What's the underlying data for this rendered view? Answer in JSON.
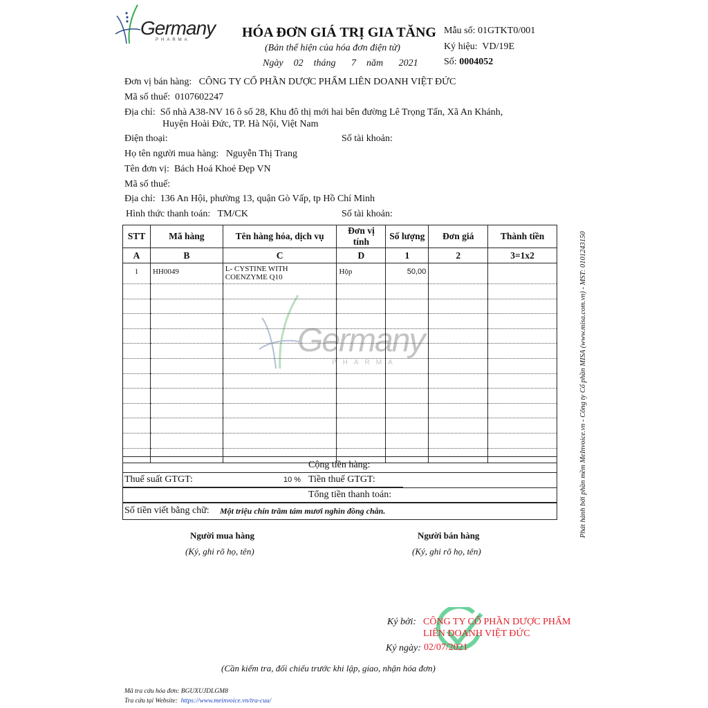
{
  "logo": {
    "brand": "Germany",
    "sub": "PHARMA"
  },
  "header": {
    "title": "HÓA ĐƠN GIÁ TRỊ GIA TĂNG",
    "subtitle": "(Bản thể hiện của hóa đơn điện tử)",
    "date_day_label": "Ngày",
    "day": "02",
    "month_label": "tháng",
    "month": "7",
    "year_label": "năm",
    "year": "2021",
    "form_label": "Mẫu số:",
    "form": "01GTKT0/001",
    "symbol_label": "Ký hiệu:",
    "symbol": "VD/19E",
    "number_label": "Số:",
    "number": "0004052"
  },
  "seller": {
    "name_label": "Đơn vị bán hàng:",
    "name": "CÔNG TY CỔ PHẦN DƯỢC PHẨM LIÊN DOANH VIỆT ĐỨC",
    "tax_label": "Mã số thuế:",
    "tax": "0107602247",
    "address_label": "Địa chỉ:",
    "address_1": "Số nhà A38-NV 16 ô số 28, Khu đô thị mới hai bên đường Lê Trọng Tấn, Xã An Khánh,",
    "address_2": "Huyện Hoài Đức, TP. Hà Nội, Việt Nam",
    "phone_label": "Điện thoại:",
    "account_label": "Số tài khoản:"
  },
  "buyer": {
    "name_label": "Họ tên người mua hàng:",
    "name": "Nguyễn Thị Trang",
    "unit_label": "Tên đơn vị:",
    "unit": "Bách Hoá Khoẻ Đẹp VN",
    "tax_label": "Mã số thuế:",
    "address_label": "Địa chỉ:",
    "address": "136 An Hội, phường 13, quận Gò Vấp, tp Hồ Chí Minh",
    "payment_label": "Hình thức thanh toán:",
    "payment": "TM/CK",
    "account_label": "Số tài khoản:"
  },
  "table": {
    "headers": [
      "STT",
      "Mã hàng",
      "Tên hàng hóa, dịch vụ",
      "Đơn vị tính",
      "Số lượng",
      "Đơn giá",
      "Thành tiền"
    ],
    "codes": [
      "A",
      "B",
      "C",
      "D",
      "1",
      "2",
      "3=1x2"
    ],
    "rows": [
      {
        "stt": "1",
        "code": "HH0049",
        "name_1": "L- CYSTINE WITH",
        "name_2": "COENZYME Q10",
        "unit": "Hộp",
        "qty": "50,00",
        "price": "",
        "amount": ""
      }
    ]
  },
  "summary": {
    "subtotal_label": "Cộng tiền hàng:",
    "vat_rate_label": "Thuế suất GTGT:",
    "vat_rate": "10 %",
    "vat_label": "Tiền thuế GTGT:",
    "total_label": "Tổng tiền thanh toán:",
    "words_label": "Số tiền viết bằng chữ:",
    "words": "Một triệu chín trăm tám mươi nghìn đồng chẵn."
  },
  "signatures": {
    "buyer": "Người mua hàng",
    "buyer_note": "(Ký, ghi rõ họ, tên)",
    "seller": "Người bán hàng",
    "seller_note": "(Ký, ghi rõ họ, tên)",
    "signed_by_label": "Ký bởi:",
    "signed_by_1": "CÔNG TY CỔ PHẦN DƯỢC PHẨM",
    "signed_by_2": "LIÊN DOANH VIỆT ĐỨC",
    "signed_date_label": "Ký ngày:",
    "signed_date": "02/07/2021"
  },
  "footer": {
    "note": "(Cần kiểm tra, đối chiếu trước khi lập, giao, nhận hóa đơn)",
    "lookup_label": "Mã tra cứu hóa đơn:",
    "lookup": "BGUXUJDLGM8",
    "website_label": "Tra cứu tại Website:",
    "website": "https://www.meinvoice.vn/tra-cuu/",
    "side_text": "Phát hành bởi phần mềm MeInvoice.vn - Công ty Cổ phần MISA (www.misa.com.vn) - MST: 0101243150"
  },
  "colors": {
    "red": "#e0202a",
    "link": "#1a3fc0",
    "stamp": "#3cc47c",
    "logo_blue": "#2a4b8c",
    "logo_green": "#3aa84a"
  }
}
